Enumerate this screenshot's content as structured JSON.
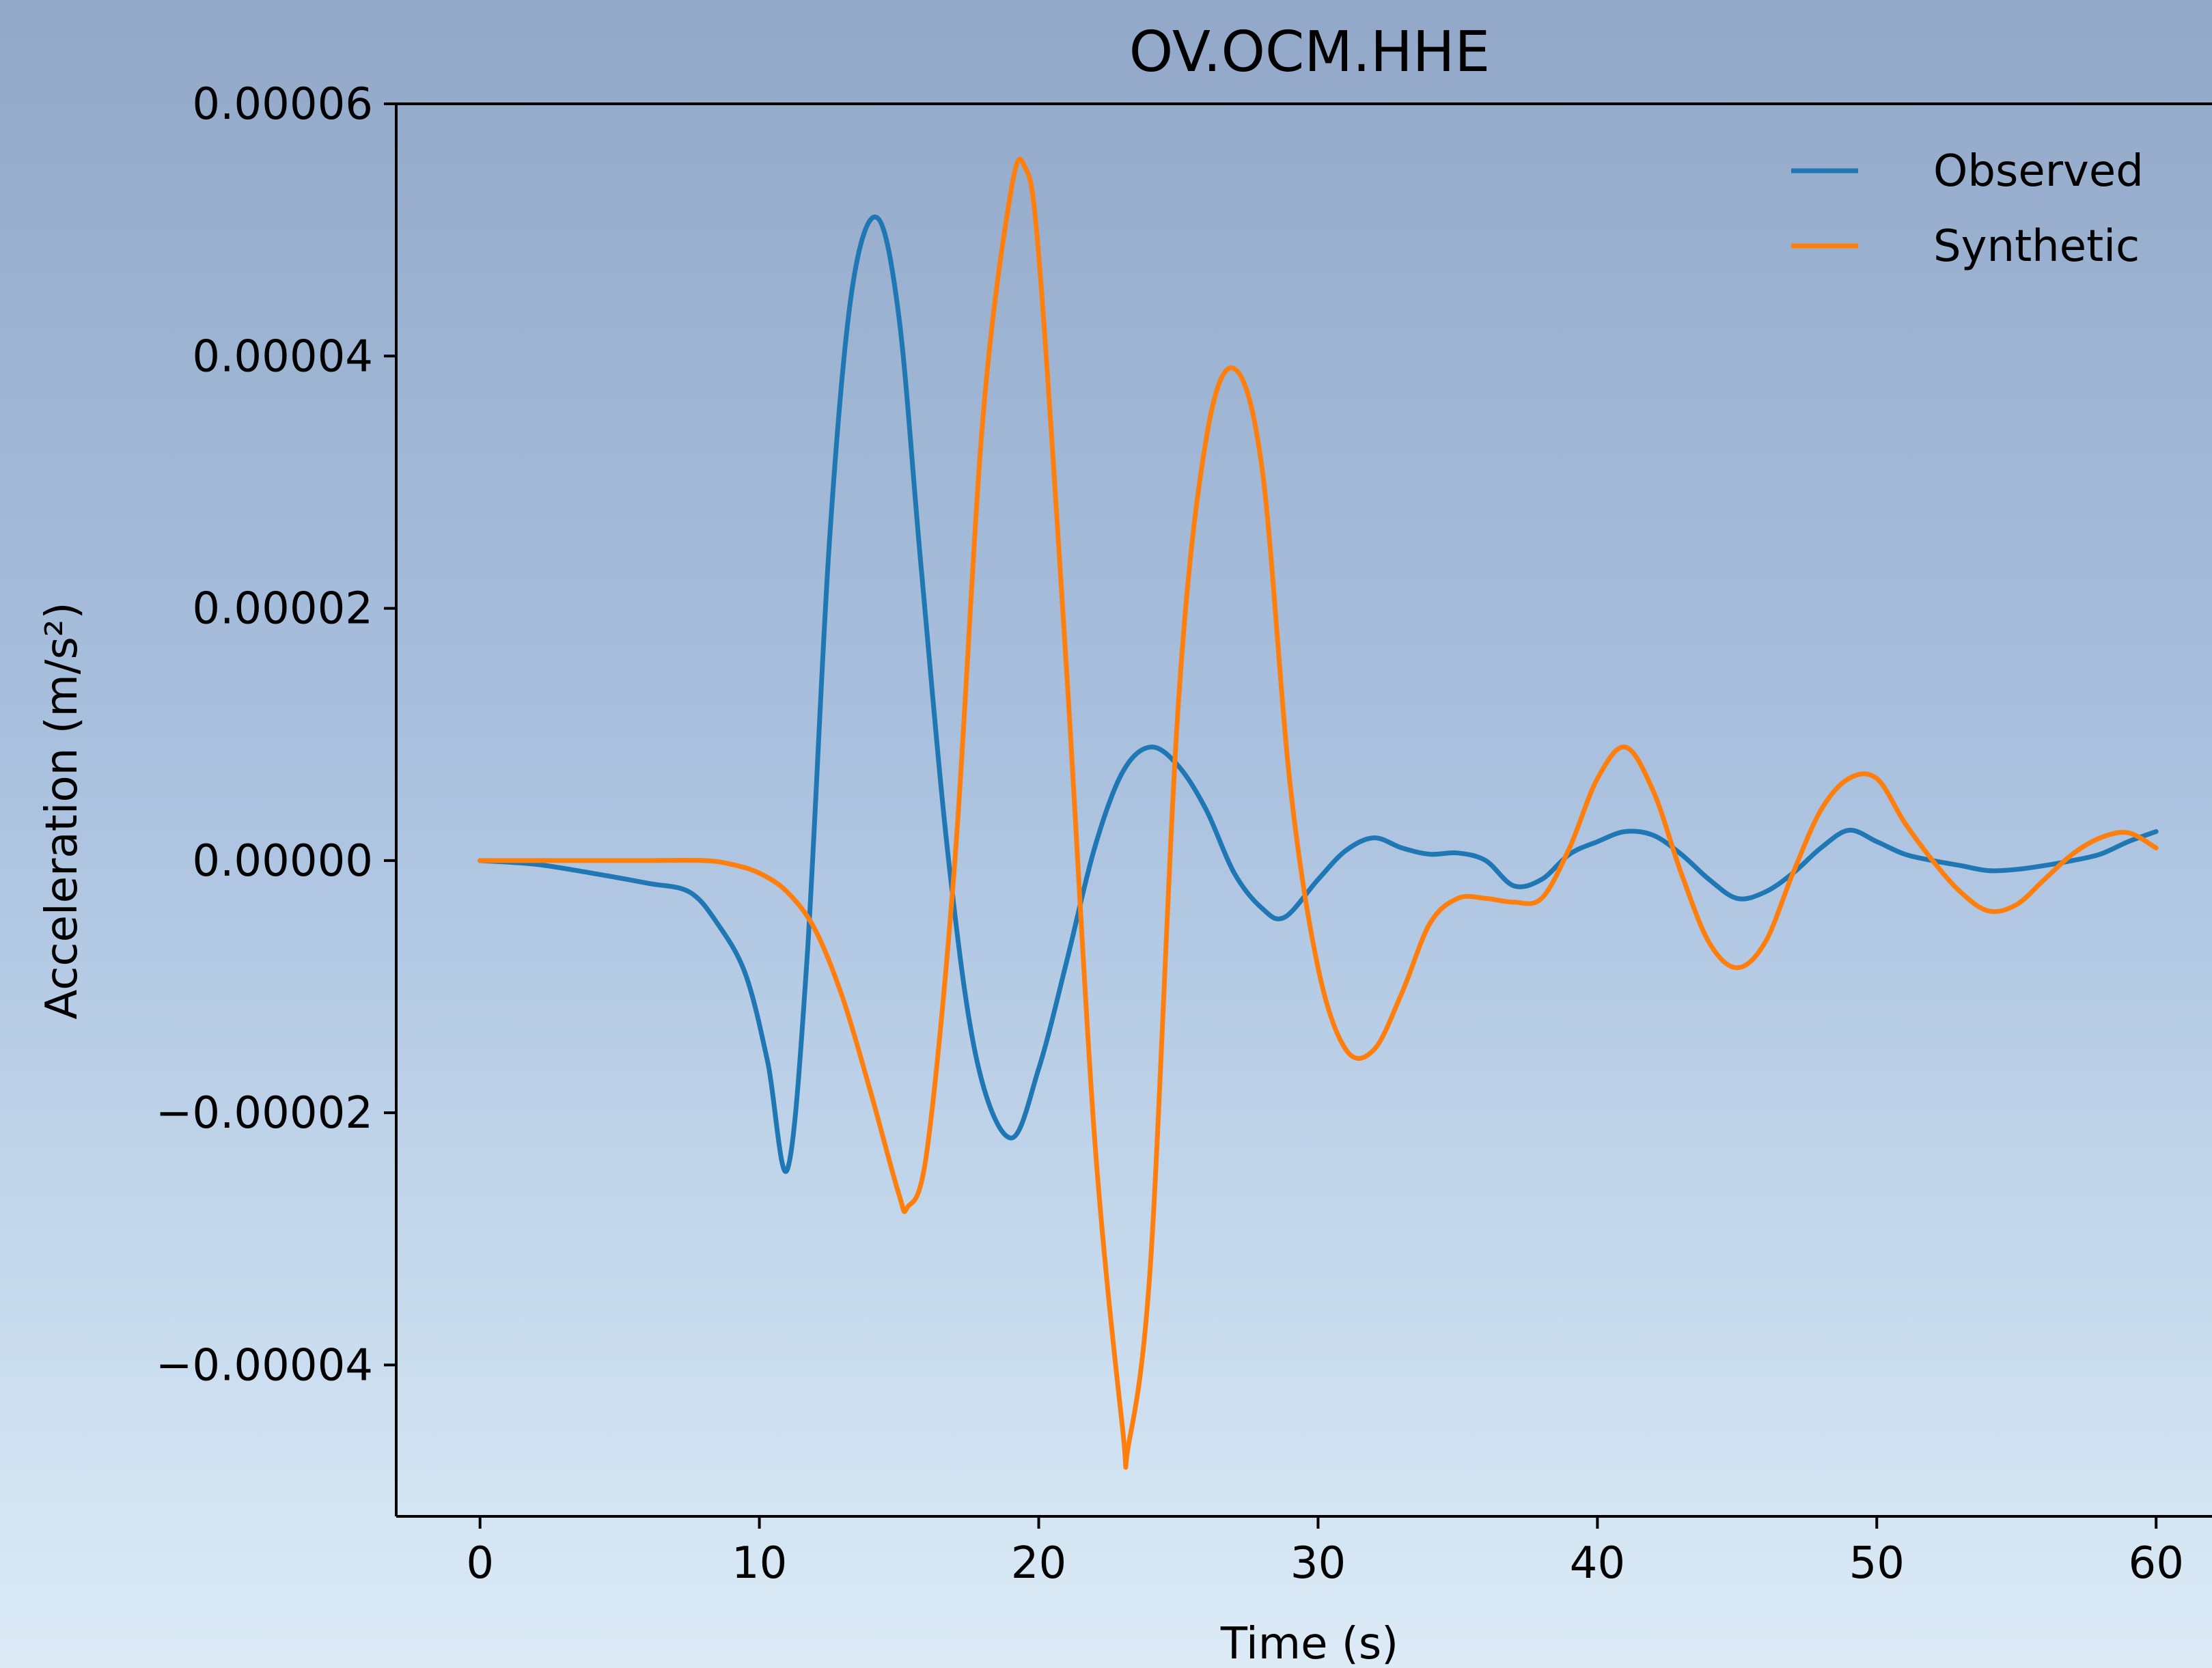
{
  "chart_data": {
    "type": "line",
    "title": "OV.OCM.HHE",
    "xlabel": "Time (s)",
    "ylabel": "Acceleration (m/s²)",
    "xlim": [
      -3,
      62
    ],
    "ylim": [
      -5.2e-05,
      6e-05
    ],
    "xticks": [
      0,
      10,
      20,
      30,
      40,
      50,
      60
    ],
    "xtick_labels": [
      "0",
      "10",
      "20",
      "30",
      "40",
      "50",
      "60"
    ],
    "yticks": [
      -4e-05,
      -2e-05,
      0,
      2e-05,
      4e-05,
      6e-05
    ],
    "ytick_labels": [
      "−0.00004",
      "−0.00002",
      "0.00000",
      "0.00002",
      "0.00004",
      "0.00006"
    ],
    "legend_position": "top-right",
    "grid": false,
    "series": [
      {
        "name": "Observed",
        "color": "#1f77b4",
        "x": [
          0,
          2,
          4,
          6,
          7.5,
          8.5,
          9.5,
          10.3,
          11,
          11.7,
          12.5,
          13.3,
          14.2,
          15,
          15.8,
          16.8,
          17.8,
          19,
          20,
          21,
          22,
          23,
          24,
          25,
          26,
          27,
          28,
          28.8,
          30,
          31,
          32,
          33,
          34,
          35,
          36,
          37,
          38,
          39,
          40,
          41,
          42,
          43,
          44,
          45,
          46,
          47,
          48,
          49,
          50,
          51,
          52,
          53,
          54,
          55,
          56,
          57,
          58,
          59,
          60
        ],
        "y": [
          0,
          -3e-07,
          -1e-06,
          -1.8e-06,
          -2.5e-06,
          -5e-06,
          -9e-06,
          -1.6e-05,
          -2.45e-05,
          -8e-06,
          2.5e-05,
          4.5e-05,
          5.1e-05,
          4.3e-05,
          2.3e-05,
          -5e-07,
          -1.6e-05,
          -2.2e-05,
          -1.65e-05,
          -8e-06,
          1e-06,
          7e-06,
          9e-06,
          7.5e-06,
          4e-06,
          -1e-06,
          -3.8e-06,
          -4.5e-06,
          -1.5e-06,
          8e-07,
          1.8e-06,
          1e-06,
          5e-07,
          6e-07,
          0,
          -2e-06,
          -1.5e-06,
          5e-07,
          1.5e-06,
          2.3e-06,
          2e-06,
          5e-07,
          -1.5e-06,
          -3e-06,
          -2.5e-06,
          -1e-06,
          1e-06,
          2.4e-06,
          1.5e-06,
          5e-07,
          0,
          -4e-07,
          -8e-07,
          -7e-07,
          -4e-07,
          0,
          5e-07,
          1.5e-06,
          2.3e-06
        ]
      },
      {
        "name": "Synthetic",
        "color": "#ff7f0e",
        "x": [
          0,
          2,
          4,
          6,
          8,
          9,
          10,
          11,
          12,
          13,
          14,
          15,
          15.3,
          16,
          17,
          18,
          19,
          19.5,
          20,
          21,
          22,
          23,
          23.2,
          24,
          25,
          26,
          27,
          28,
          29,
          30,
          31,
          32,
          33,
          34,
          35,
          36,
          37,
          38,
          39,
          40,
          41,
          42,
          43,
          44,
          45,
          46,
          47,
          48,
          49,
          50,
          51,
          52,
          53,
          54,
          55,
          56,
          57,
          58,
          59,
          60
        ],
        "y": [
          0,
          0,
          0,
          0,
          0,
          -3e-07,
          -1e-06,
          -2.5e-06,
          -5.5e-06,
          -1.1e-05,
          -1.85e-05,
          -2.65e-05,
          -2.75e-05,
          -2.3e-05,
          0,
          3.5e-05,
          5.3e-05,
          5.5e-05,
          4.8e-05,
          1.5e-05,
          -2.2e-05,
          -4.5e-05,
          -4.65e-05,
          -3.2e-05,
          1.25e-05,
          3.35e-05,
          3.9e-05,
          3.1e-05,
          6e-06,
          -8.5e-06,
          -1.5e-05,
          -1.5e-05,
          -1.05e-05,
          -5e-06,
          -3e-06,
          -3e-06,
          -3.3e-06,
          -3e-06,
          1e-06,
          6.5e-06,
          9e-06,
          5.5e-06,
          -1e-06,
          -6.5e-06,
          -8.5e-06,
          -6.5e-06,
          -1e-06,
          4e-06,
          6.5e-06,
          6.5e-06,
          3e-06,
          0,
          -2.5e-06,
          -4e-06,
          -3.5e-06,
          -1.5e-06,
          5e-07,
          1.8e-06,
          2.2e-06,
          1e-06
        ]
      }
    ]
  }
}
